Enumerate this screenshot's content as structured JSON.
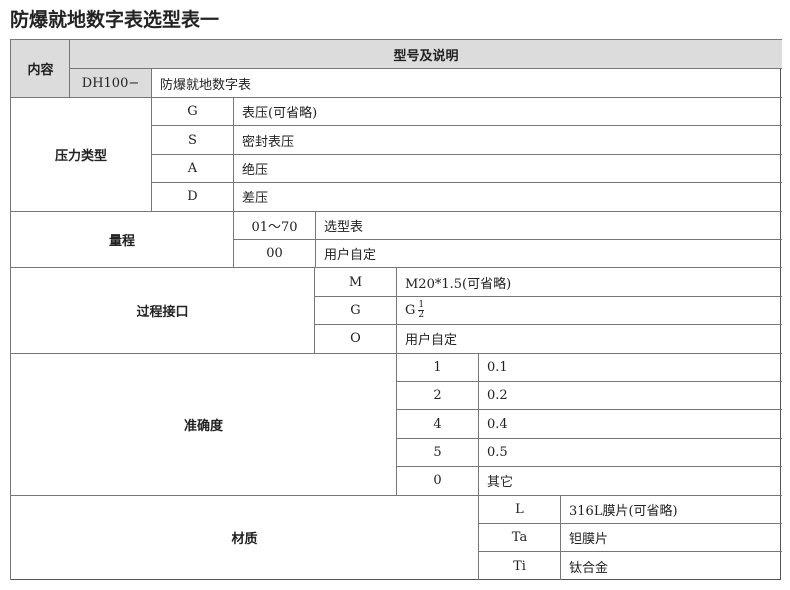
{
  "title": "防爆就地数字表选型表一",
  "header": {
    "content_label": "内容",
    "model_label": "型号及说明",
    "model_code": "DH100−",
    "model_desc": "防爆就地数字表"
  },
  "sections": [
    {
      "label": "压力类型",
      "rows": [
        [
          "G",
          "表压(可省略)"
        ],
        [
          "S",
          "密封表压"
        ],
        [
          "A",
          "绝压"
        ],
        [
          "D",
          "差压"
        ]
      ]
    },
    {
      "label": "量程",
      "rows": [
        [
          "01～70",
          "选型表"
        ],
        [
          "00",
          "用户自定"
        ]
      ]
    },
    {
      "label": "过程接口",
      "rows": [
        [
          "M",
          "M20*1.5(可省略)"
        ],
        [
          "G",
          "G|1|2"
        ],
        [
          "O",
          "用户自定"
        ]
      ]
    },
    {
      "label": "准确度",
      "rows": [
        [
          "1",
          "0.1"
        ],
        [
          "2",
          "0.2"
        ],
        [
          "4",
          "0.4"
        ],
        [
          "5",
          "0.5"
        ],
        [
          "0",
          "其它"
        ]
      ]
    },
    {
      "label": "材质",
      "rows": [
        [
          "L",
          "316L膜片(可省略)"
        ],
        [
          "Ta",
          "钽膜片"
        ],
        [
          "Ti",
          "钛合金"
        ]
      ]
    }
  ]
}
